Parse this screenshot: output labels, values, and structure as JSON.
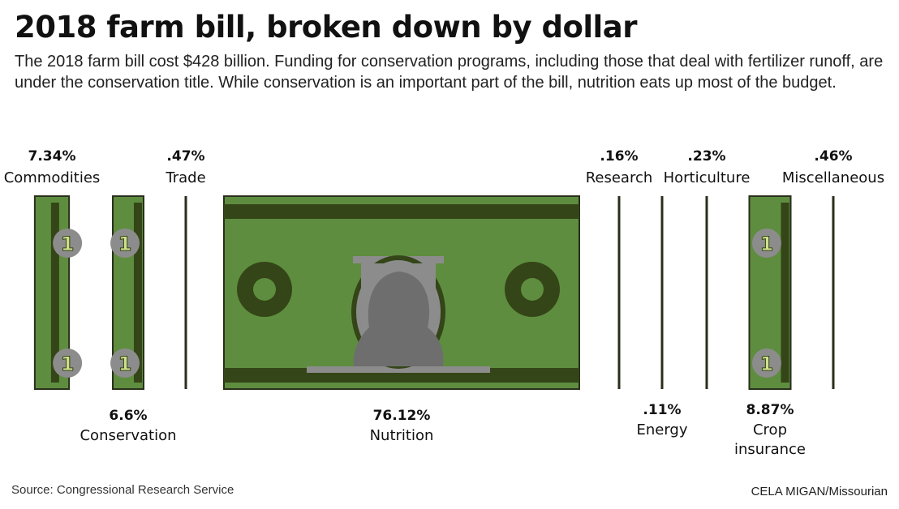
{
  "header": {
    "title": "2018 farm bill, broken down by dollar",
    "subtitle": "The 2018 farm bill cost $428 billion. Funding for conservation programs, including those that deal with fertilizer runoff, are under the conservation title. While conservation is an important part of the bill, nutrition eats up most of the budget."
  },
  "chart_data": {
    "type": "bar",
    "categories": [
      "Commodities",
      "Conservation",
      "Trade",
      "Nutrition",
      "Research",
      "Energy",
      "Horticulture",
      "Crop insurance",
      "Miscellaneous"
    ],
    "values": [
      7.34,
      6.6,
      0.47,
      76.12,
      0.16,
      0.11,
      0.23,
      8.87,
      0.46
    ],
    "value_labels": [
      "7.34%",
      "6.6%",
      ".47%",
      "76.12%",
      ".16%",
      ".11%",
      ".23%",
      "8.87%",
      ".46%"
    ],
    "label_lines": [
      [
        "Commodities"
      ],
      [
        "Conservation"
      ],
      [
        "Trade"
      ],
      [
        "Nutrition"
      ],
      [
        "Research"
      ],
      [
        "Energy"
      ],
      [
        "Horticulture"
      ],
      [
        "Crop",
        "insurance"
      ],
      [
        "Miscellaneous"
      ]
    ],
    "label_position": [
      "top",
      "bottom",
      "top",
      "bottom",
      "top",
      "bottom",
      "top",
      "bottom",
      "top"
    ],
    "unit": "%",
    "colors": {
      "bill_green": "#5e8d3f",
      "bill_dark": "#344517",
      "bill_border": "#2a2f1c",
      "portrait": "#8c8c8c",
      "numeral": "#cfe08a"
    }
  },
  "footer": {
    "source": "Source: Congressional Research Service",
    "credit_name": "CELA MIGAN",
    "credit_org": "/Missourian"
  }
}
